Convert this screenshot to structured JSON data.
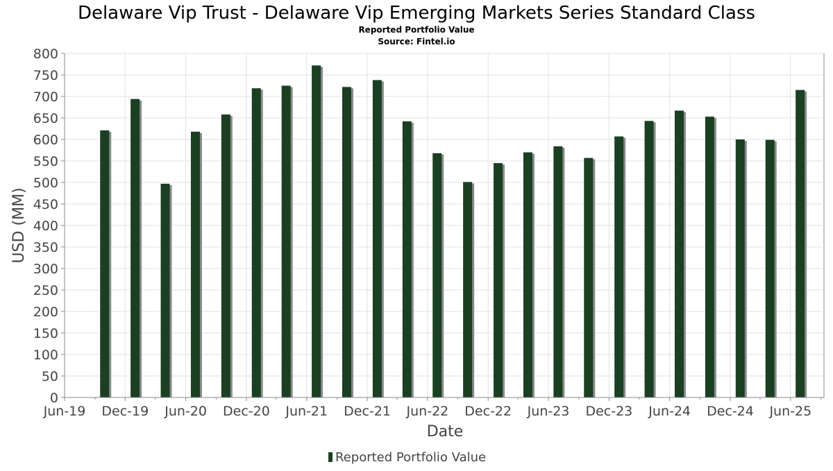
{
  "chart_data": {
    "type": "bar",
    "title": "Delaware Vip Trust - Delaware Vip Emerging Markets Series Standard Class",
    "subtitle": "Reported Portfolio Value",
    "source": "Source: Fintel.io",
    "xlabel": "Date",
    "ylabel": "USD (MM)",
    "ylim": [
      0,
      800
    ],
    "yticks": [
      0,
      50,
      100,
      150,
      200,
      250,
      300,
      350,
      400,
      450,
      500,
      550,
      600,
      650,
      700,
      750,
      800
    ],
    "xlim": [
      "2019-06-01",
      "2025-09-10"
    ],
    "xticks": [
      {
        "label": "Jun-19",
        "date": "2019-06-01"
      },
      {
        "label": "Dec-19",
        "date": "2019-12-01"
      },
      {
        "label": "Jun-20",
        "date": "2020-06-01"
      },
      {
        "label": "Dec-20",
        "date": "2020-12-01"
      },
      {
        "label": "Jun-21",
        "date": "2021-06-01"
      },
      {
        "label": "Dec-21",
        "date": "2021-12-01"
      },
      {
        "label": "Jun-22",
        "date": "2022-06-01"
      },
      {
        "label": "Dec-22",
        "date": "2022-12-01"
      },
      {
        "label": "Jun-23",
        "date": "2023-06-01"
      },
      {
        "label": "Dec-23",
        "date": "2023-12-01"
      },
      {
        "label": "Jun-24",
        "date": "2024-06-01"
      },
      {
        "label": "Dec-24",
        "date": "2024-12-01"
      },
      {
        "label": "Jun-25",
        "date": "2025-06-01"
      }
    ],
    "grid": true,
    "legend_position": "bottom",
    "series": [
      {
        "name": "Reported Portfolio Value",
        "color": "#1a3f22",
        "points": [
          {
            "date": "2019-09-30",
            "value": 621
          },
          {
            "date": "2019-12-31",
            "value": 694
          },
          {
            "date": "2020-03-31",
            "value": 497
          },
          {
            "date": "2020-06-30",
            "value": 618
          },
          {
            "date": "2020-09-30",
            "value": 658
          },
          {
            "date": "2020-12-31",
            "value": 719
          },
          {
            "date": "2021-03-31",
            "value": 725
          },
          {
            "date": "2021-06-30",
            "value": 772
          },
          {
            "date": "2021-09-30",
            "value": 722
          },
          {
            "date": "2021-12-31",
            "value": 738
          },
          {
            "date": "2022-03-31",
            "value": 642
          },
          {
            "date": "2022-06-30",
            "value": 568
          },
          {
            "date": "2022-09-30",
            "value": 501
          },
          {
            "date": "2022-12-31",
            "value": 545
          },
          {
            "date": "2023-03-31",
            "value": 570
          },
          {
            "date": "2023-06-30",
            "value": 584
          },
          {
            "date": "2023-09-30",
            "value": 557
          },
          {
            "date": "2023-12-31",
            "value": 607
          },
          {
            "date": "2024-03-31",
            "value": 643
          },
          {
            "date": "2024-06-30",
            "value": 667
          },
          {
            "date": "2024-09-30",
            "value": 653
          },
          {
            "date": "2024-12-31",
            "value": 600
          },
          {
            "date": "2025-03-31",
            "value": 599
          },
          {
            "date": "2025-06-30",
            "value": 715
          }
        ]
      }
    ]
  }
}
